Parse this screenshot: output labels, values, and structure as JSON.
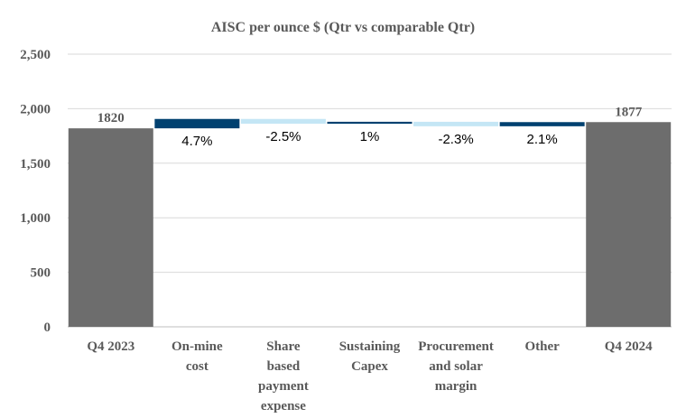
{
  "chart_data": {
    "type": "waterfall",
    "title": "AISC per ounce $ (Qtr vs comparable Qtr)",
    "xlabel": "",
    "ylabel": "",
    "ylim": [
      0,
      2500
    ],
    "yticks": [
      0,
      500,
      1000,
      1500,
      2000,
      2500
    ],
    "ytick_labels": [
      "0",
      "500",
      "1,000",
      "1,500",
      "2,000",
      "2,500"
    ],
    "grid": true,
    "legend": "none",
    "colors": {
      "total": "#6d6d6d",
      "increase": "#004170",
      "decrease": "#c4e6f5",
      "grid": "#d9d9d9",
      "title": "#595959",
      "tick": "#595959"
    },
    "bars": [
      {
        "category": [
          "Q4 2023"
        ],
        "kind": "total",
        "value": 1820,
        "label": "1820"
      },
      {
        "category": [
          "On-mine",
          "cost"
        ],
        "kind": "increase",
        "base": 1820,
        "delta": 86,
        "label": "4.7%"
      },
      {
        "category": [
          "Share",
          "based",
          "payment",
          "expense"
        ],
        "kind": "decrease",
        "base": 1906,
        "delta": -44,
        "label": "-2.5%"
      },
      {
        "category": [
          "Sustaining",
          "Capex"
        ],
        "kind": "increase",
        "base": 1862,
        "delta": 18,
        "label": "1%"
      },
      {
        "category": [
          "Procurement",
          "and solar",
          "margin"
        ],
        "kind": "decrease",
        "base": 1880,
        "delta": -41,
        "label": "-2.3%"
      },
      {
        "category": [
          "Other"
        ],
        "kind": "increase",
        "base": 1839,
        "delta": 38,
        "label": "2.1%"
      },
      {
        "category": [
          "Q4 2024"
        ],
        "kind": "total",
        "value": 1877,
        "label": "1877"
      }
    ]
  }
}
